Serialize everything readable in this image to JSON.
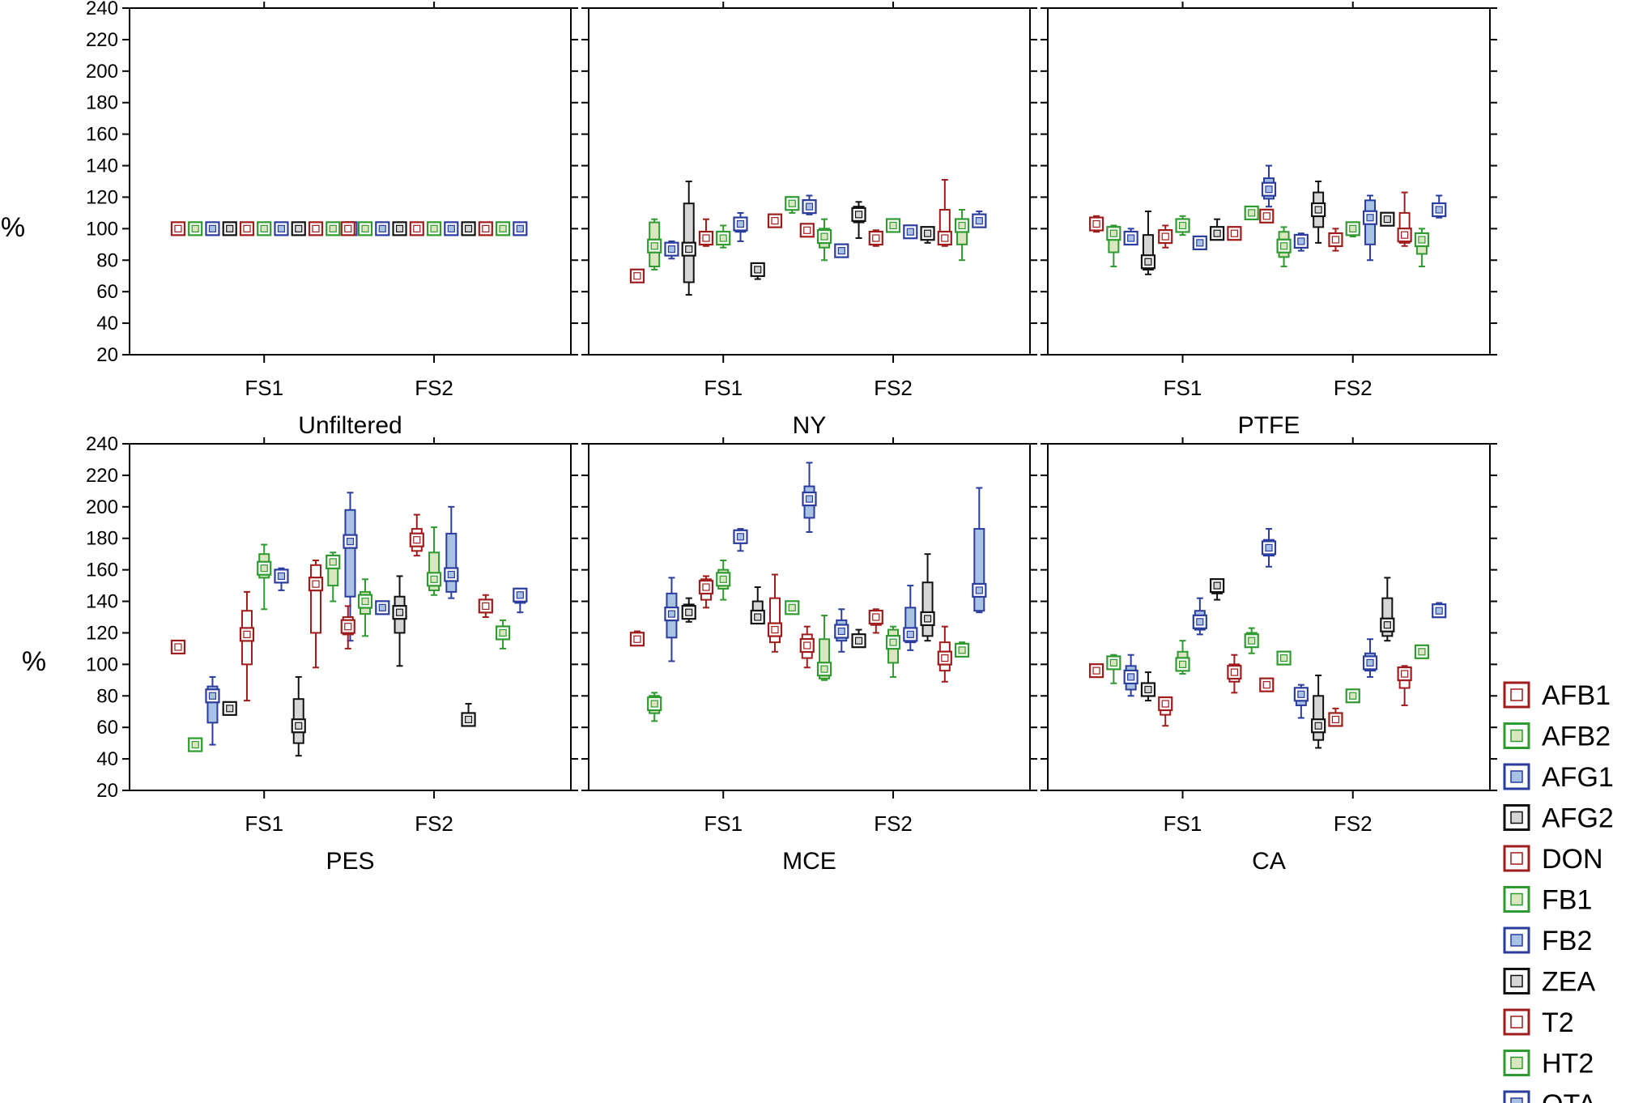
{
  "colors": {
    "red": "#a01c1c",
    "green": "#2f9a2f",
    "blue": "#2a3d9e",
    "black": "#111111",
    "fill_red": "#ffffff",
    "fill_green": "#d9e6bf",
    "fill_blue": "#a9c1e3",
    "fill_black": "#d6d6d6"
  },
  "chart_data": {
    "type": "box",
    "ylabel": "%",
    "yticks": [
      "20",
      "40",
      "60",
      "80",
      "100",
      "120",
      "140",
      "160",
      "180",
      "200",
      "220",
      "240"
    ],
    "ylim": [
      20,
      240
    ],
    "groups": [
      "FS1",
      "FS2"
    ],
    "legend": [
      {
        "label": "AFB1",
        "color": "red"
      },
      {
        "label": "AFB2",
        "color": "green"
      },
      {
        "label": "AFG1",
        "color": "blue"
      },
      {
        "label": "AFG2",
        "color": "black"
      },
      {
        "label": "DON",
        "color": "red"
      },
      {
        "label": "FB1",
        "color": "green"
      },
      {
        "label": "FB2",
        "color": "blue"
      },
      {
        "label": "ZEA",
        "color": "black"
      },
      {
        "label": "T2",
        "color": "red"
      },
      {
        "label": "HT2",
        "color": "green"
      },
      {
        "label": "OTA",
        "color": "blue"
      }
    ],
    "series_order": [
      "AFB1",
      "AFB2",
      "AFG1",
      "AFG2",
      "DON",
      "FB1",
      "FB2",
      "ZEA",
      "T2",
      "HT2",
      "OTA"
    ],
    "panels": [
      {
        "title": "Unfiltered",
        "data": {
          "FS1": {
            "AFB1": [
              100,
              100,
              100,
              100,
              100
            ],
            "AFB2": [
              100,
              100,
              100,
              100,
              100
            ],
            "AFG1": [
              100,
              100,
              100,
              100,
              100
            ],
            "AFG2": [
              100,
              100,
              100,
              100,
              100
            ],
            "DON": [
              100,
              100,
              100,
              100,
              100
            ],
            "FB1": [
              100,
              100,
              100,
              100,
              100
            ],
            "FB2": [
              100,
              100,
              100,
              100,
              100
            ],
            "ZEA": [
              100,
              100,
              100,
              100,
              100
            ],
            "T2": [
              100,
              100,
              100,
              100,
              100
            ],
            "HT2": [
              100,
              100,
              100,
              100,
              100
            ],
            "OTA": [
              100,
              100,
              100,
              100,
              100
            ]
          },
          "FS2": {
            "AFB1": [
              100,
              100,
              100,
              100,
              100
            ],
            "AFB2": [
              100,
              100,
              100,
              100,
              100
            ],
            "AFG1": [
              100,
              100,
              100,
              100,
              100
            ],
            "AFG2": [
              100,
              100,
              100,
              100,
              100
            ],
            "DON": [
              100,
              100,
              100,
              100,
              100
            ],
            "FB1": [
              100,
              100,
              100,
              100,
              100
            ],
            "FB2": [
              100,
              100,
              100,
              100,
              100
            ],
            "ZEA": [
              100,
              100,
              100,
              100,
              100
            ],
            "T2": [
              100,
              100,
              100,
              100,
              100
            ],
            "HT2": [
              100,
              100,
              100,
              100,
              100
            ],
            "OTA": [
              100,
              100,
              100,
              100,
              100
            ]
          }
        }
      },
      {
        "title": "NY",
        "data": {
          "FS1": {
            "AFB1": [
              69,
              69,
              70,
              72,
              72
            ],
            "AFB2": [
              74,
              76,
              89,
              104,
              106
            ],
            "AFG1": [
              81,
              84,
              87,
              90,
              92
            ],
            "AFG2": [
              58,
              66,
              87,
              116,
              130
            ],
            "DON": [
              89,
              91,
              94,
              98,
              106
            ],
            "FB1": [
              88,
              91,
              94,
              97,
              102
            ],
            "FB2": [
              92,
              98,
              103,
              107,
              110
            ],
            "ZEA": [
              68,
              70,
              74,
              76,
              78
            ],
            "T2": [
              102,
              103,
              105,
              106,
              107
            ],
            "HT2": [
              110,
              113,
              116,
              117,
              119
            ],
            "OTA": [
              109,
              112,
              114,
              117,
              121
            ]
          },
          "FS2": {
            "AFB1": [
              96,
              97,
              99,
              101,
              102
            ],
            "AFB2": [
              80,
              88,
              95,
              100,
              106
            ],
            "AFG1": [
              82,
              84,
              86,
              88,
              90
            ],
            "AFG2": [
              94,
              104,
              109,
              114,
              117
            ],
            "DON": [
              89,
              91,
              94,
              96,
              99
            ],
            "FB1": [
              100,
              101,
              102,
              104,
              105
            ],
            "FB2": [
              94,
              96,
              98,
              100,
              101
            ],
            "ZEA": [
              91,
              95,
              97,
              98,
              100
            ],
            "T2": [
              89,
              91,
              94,
              112,
              131
            ],
            "HT2": [
              80,
              90,
              102,
              105,
              112
            ],
            "OTA": [
              102,
              103,
              105,
              108,
              111
            ]
          }
        }
      },
      {
        "title": "PTFE",
        "data": {
          "FS1": {
            "AFB1": [
              98,
              100,
              103,
              106,
              108
            ],
            "AFB2": [
              76,
              85,
              97,
              100,
              102
            ],
            "AFG1": [
              90,
              92,
              94,
              97,
              100
            ],
            "AFG2": [
              71,
              74,
              79,
              96,
              111
            ],
            "DON": [
              88,
              91,
              95,
              98,
              102
            ],
            "FB1": [
              96,
              99,
              102,
              105,
              108
            ],
            "FB2": [
              87,
              89,
              91,
              93,
              95
            ],
            "ZEA": [
              93,
              95,
              97,
              100,
              106
            ],
            "T2": [
              93,
              95,
              97,
              99,
              101
            ],
            "HT2": [
              106,
              108,
              110,
              112,
              114
            ],
            "OTA": [
              114,
              119,
              125,
              132,
              140
            ]
          },
          "FS2": {
            "AFB1": [
              104,
              106,
              108,
              110,
              111
            ],
            "AFB2": [
              76,
              82,
              89,
              98,
              101
            ],
            "AFG1": [
              86,
              89,
              92,
              95,
              97
            ],
            "AFG2": [
              91,
              101,
              112,
              123,
              130
            ],
            "DON": [
              86,
              89,
              93,
              97,
              100
            ],
            "FB1": [
              95,
              98,
              100,
              102,
              104
            ],
            "FB2": [
              80,
              90,
              107,
              118,
              121
            ],
            "ZEA": [
              104,
              105,
              106,
              107,
              108
            ],
            "T2": [
              89,
              91,
              96,
              110,
              123
            ],
            "HT2": [
              76,
              84,
              93,
              97,
              100
            ],
            "OTA": [
              107,
              109,
              112,
              116,
              121
            ]
          }
        }
      },
      {
        "title": "PES",
        "data": {
          "FS1": {
            "AFB1": [
              109,
              110,
              111,
              113,
              114
            ],
            "AFB2": [
              47,
              48,
              49,
              50,
              51
            ],
            "AFG1": [
              49,
              63,
              80,
              86,
              92
            ],
            "AFG2": [
              68,
              70,
              72,
              74,
              76
            ],
            "DON": [
              77,
              100,
              119,
              134,
              146
            ],
            "FB1": [
              135,
              155,
              161,
              170,
              176
            ],
            "FB2": [
              147,
              153,
              156,
              159,
              161
            ],
            "ZEA": [
              42,
              50,
              61,
              78,
              92
            ],
            "T2": [
              98,
              120,
              151,
              163,
              166
            ],
            "HT2": [
              140,
              150,
              165,
              169,
              171
            ],
            "OTA": [
              115,
              143,
              178,
              198,
              209
            ]
          },
          "FS2": {
            "AFB1": [
              110,
              119,
              124,
              130,
              137
            ],
            "AFB2": [
              118,
              132,
              140,
              146,
              154
            ],
            "AFG1": [
              132,
              134,
              136,
              138,
              140
            ],
            "AFG2": [
              99,
              120,
              133,
              143,
              156
            ],
            "DON": [
              169,
              172,
              179,
              186,
              195
            ],
            "FB1": [
              144,
              147,
              154,
              171,
              187
            ],
            "FB2": [
              142,
              146,
              157,
              183,
              200
            ],
            "ZEA": [
              62,
              63,
              65,
              68,
              75
            ],
            "T2": [
              130,
              134,
              137,
              140,
              144
            ],
            "HT2": [
              110,
              116,
              120,
              124,
              128
            ],
            "OTA": [
              133,
              139,
              144,
              147,
              148
            ]
          }
        }
      },
      {
        "title": "MCE",
        "data": {
          "FS1": {
            "AFB1": [
              112,
              114,
              116,
              119,
              121
            ],
            "AFB2": [
              64,
              69,
              75,
              80,
              82
            ],
            "AFG1": [
              102,
              117,
              132,
              145,
              155
            ],
            "AFG2": [
              127,
              129,
              133,
              138,
              142
            ],
            "DON": [
              136,
              141,
              149,
              154,
              156
            ],
            "FB1": [
              141,
              148,
              154,
              160,
              166
            ],
            "FB2": [
              172,
              177,
              181,
              185,
              186
            ],
            "ZEA": [
              126,
              128,
              130,
              140,
              149
            ],
            "T2": [
              108,
              114,
              122,
              142,
              157
            ],
            "HT2": [
              133,
              134,
              136,
              138,
              139
            ],
            "OTA": [
              184,
              193,
              205,
              213,
              228
            ]
          },
          "FS2": {
            "AFB1": [
              98,
              104,
              112,
              119,
              124
            ],
            "AFB2": [
              90,
              91,
              97,
              116,
              131
            ],
            "AFG1": [
              108,
              115,
              121,
              128,
              135
            ],
            "AFG2": [
              111,
              112,
              115,
              118,
              122
            ],
            "DON": [
              120,
              125,
              130,
              133,
              135
            ],
            "FB1": [
              92,
              101,
              114,
              122,
              124
            ],
            "FB2": [
              109,
              114,
              119,
              136,
              150
            ],
            "ZEA": [
              115,
              118,
              129,
              152,
              170
            ],
            "T2": [
              89,
              96,
              104,
              114,
              124
            ],
            "HT2": [
              105,
              107,
              109,
              112,
              114
            ],
            "OTA": [
              133,
              134,
              147,
              186,
              212
            ]
          }
        }
      },
      {
        "title": "CA",
        "data": {
          "FS1": {
            "AFB1": [
              93,
              94,
              96,
              98,
              99
            ],
            "AFB2": [
              88,
              97,
              101,
              104,
              106
            ],
            "AFG1": [
              80,
              84,
              92,
              99,
              106
            ],
            "AFG2": [
              77,
              81,
              84,
              88,
              95
            ],
            "DON": [
              61,
              68,
              75,
              77,
              78
            ],
            "FB1": [
              94,
              98,
              100,
              108,
              115
            ],
            "FB2": [
              119,
              122,
              127,
              134,
              142
            ],
            "ZEA": [
              141,
              145,
              150,
              152,
              153
            ],
            "T2": [
              82,
              89,
              95,
              100,
              106
            ],
            "HT2": [
              107,
              112,
              115,
              120,
              123
            ],
            "OTA": [
              162,
              169,
              174,
              179,
              186
            ]
          },
          "FS2": {
            "AFB1": [
              85,
              86,
              87,
              89,
              90
            ],
            "AFB2": [
              101,
              103,
              104,
              106,
              107
            ],
            "AFG1": [
              66,
              74,
              81,
              85,
              87
            ],
            "AFG2": [
              47,
              52,
              61,
              80,
              93
            ],
            "DON": [
              62,
              64,
              65,
              69,
              72
            ],
            "FB1": [
              78,
              79,
              80,
              82,
              83
            ],
            "FB2": [
              92,
              96,
              101,
              107,
              116
            ],
            "ZEA": [
              115,
              118,
              125,
              142,
              155
            ],
            "T2": [
              74,
              85,
              94,
              97,
              99
            ],
            "HT2": [
              106,
              107,
              108,
              109,
              110
            ],
            "OTA": [
              131,
              133,
              134,
              137,
              139
            ]
          }
        }
      }
    ]
  }
}
